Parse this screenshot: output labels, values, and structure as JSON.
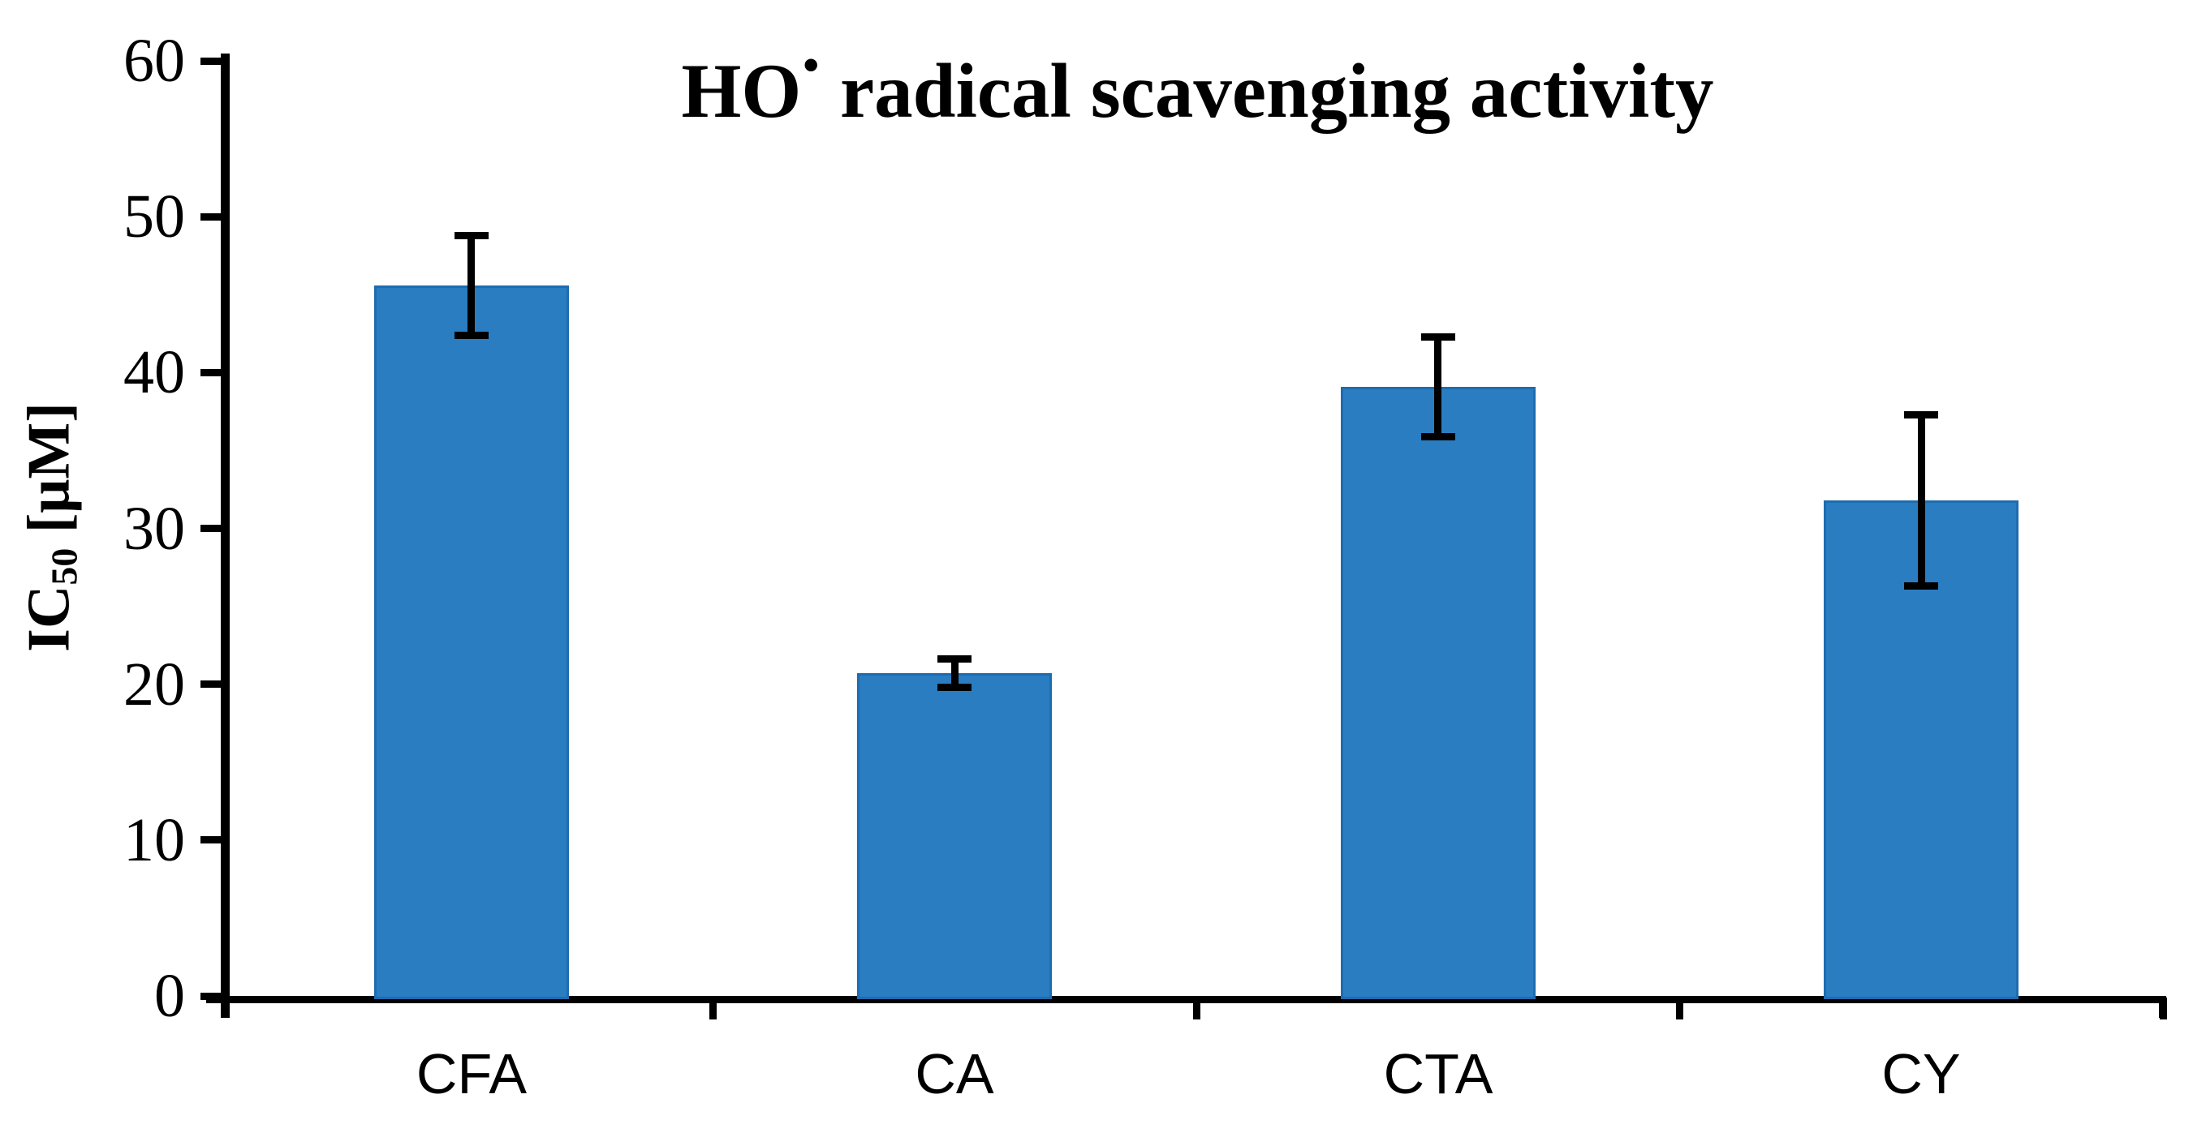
{
  "chart_data": {
    "type": "bar",
    "title": "HO• radical scavenging activity",
    "title_parts": {
      "prefix": "HO",
      "radical_dot": "•",
      "suffix": " radical scavenging activity"
    },
    "ylabel": "IC50 [μM]",
    "ylabel_parts": {
      "main": "IC",
      "sub": "50",
      "unit": " [μM]"
    },
    "xlabel": "",
    "categories": [
      "CFA",
      "CA",
      "CTA",
      "CY"
    ],
    "values": [
      45.6,
      20.7,
      39.1,
      31.8
    ],
    "errors": [
      3.2,
      0.9,
      3.2,
      5.5
    ],
    "ylim": [
      0,
      60
    ],
    "ytick_step": 10,
    "yticks": [
      0,
      10,
      20,
      30,
      40,
      50,
      60
    ],
    "grid": false,
    "legend": null,
    "colors": {
      "bar_fill": "#2A7DC1",
      "bar_border": "#1E6CB0",
      "axis": "#000000",
      "text": "#000000"
    }
  }
}
